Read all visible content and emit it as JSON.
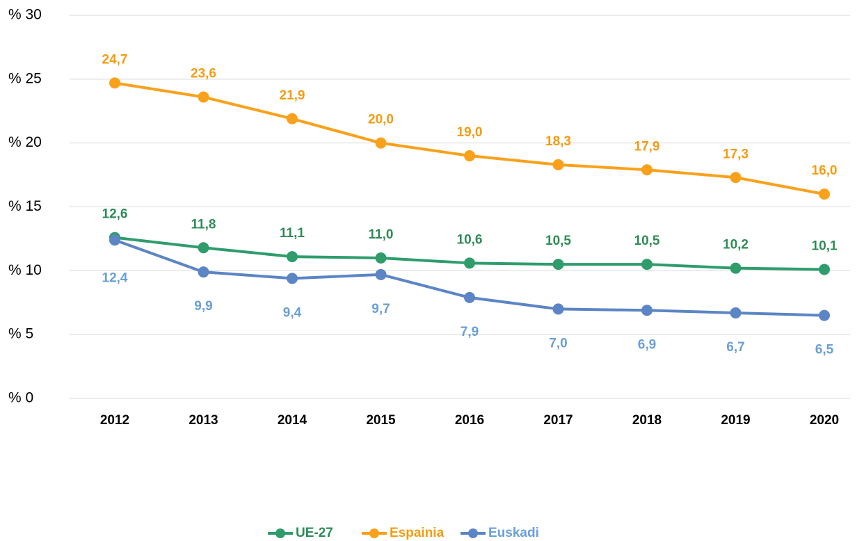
{
  "chart_data": {
    "type": "line",
    "categories": [
      "2012",
      "2013",
      "2014",
      "2015",
      "2016",
      "2017",
      "2018",
      "2019",
      "2020"
    ],
    "series": [
      {
        "name": "UE-27",
        "color": "#2f9c6c",
        "label_color": "#2e8b57",
        "values": [
          12.6,
          11.8,
          11.1,
          11.0,
          10.6,
          10.5,
          10.5,
          10.2,
          10.1
        ],
        "value_labels": [
          "12,6",
          "11,8",
          "11,1",
          "11,0",
          "10,6",
          "10,5",
          "10,5",
          "10,2",
          "10,1"
        ]
      },
      {
        "name": "Espainia",
        "color": "#f9a11b",
        "label_color": "#f39c12",
        "values": [
          24.7,
          23.6,
          21.9,
          20.0,
          19.0,
          18.3,
          17.9,
          17.3,
          16.0
        ],
        "value_labels": [
          "24,7",
          "23,6",
          "21,9",
          "20,0",
          "19,0",
          "18,3",
          "17,9",
          "17,3",
          "16,0"
        ]
      },
      {
        "name": "Euskadi",
        "color": "#5b85c5",
        "label_color": "#6a9fd8",
        "values": [
          12.4,
          9.9,
          9.4,
          9.7,
          7.9,
          7.0,
          6.9,
          6.7,
          6.5
        ],
        "value_labels": [
          "12,4",
          "9,9",
          "9,4",
          "9,7",
          "7,9",
          "7,0",
          "6,9",
          "6,7",
          "6,5"
        ]
      }
    ],
    "ylim": [
      0,
      30
    ],
    "yticks": [
      {
        "value": 0,
        "label": "% 0"
      },
      {
        "value": 5,
        "label": "% 5"
      },
      {
        "value": 10,
        "label": "% 10"
      },
      {
        "value": 15,
        "label": "% 15"
      },
      {
        "value": 20,
        "label": "% 20"
      },
      {
        "value": 25,
        "label": "% 25"
      },
      {
        "value": 30,
        "label": "% 30"
      }
    ],
    "grid": true,
    "legend": "bottom"
  }
}
